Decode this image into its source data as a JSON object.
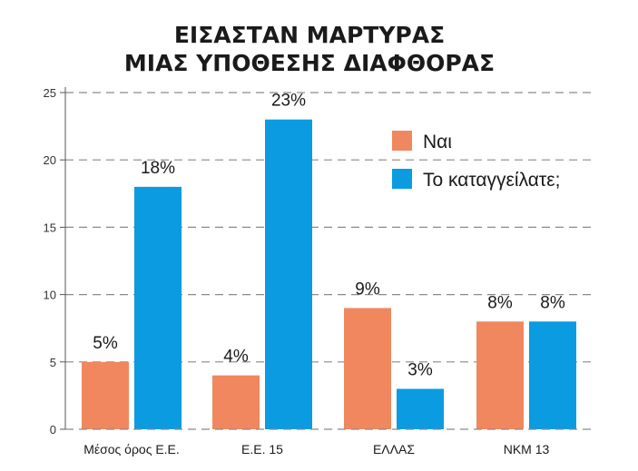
{
  "chart_data": {
    "type": "bar",
    "title": [
      "ΕΙΣΑΣΤΑΝ ΜΑΡΤΥΡΑΣ",
      "ΜΙΑΣ ΥΠΟΘΕΣΗΣ ΔΙΑΦΘΟΡΑΣ"
    ],
    "categories": [
      "Μέσος όρος Ε.Ε.",
      "Ε.Ε. 15",
      "ΕΛΛΑΣ",
      "ΝΚΜ 13"
    ],
    "series": [
      {
        "name": "Ναι",
        "values": [
          5,
          4,
          9,
          8
        ],
        "labels": [
          "5%",
          "4%",
          "9%",
          "8%"
        ],
        "color": "#F0875F"
      },
      {
        "name": "Το καταγγείλατε;",
        "values": [
          18,
          23,
          3,
          8
        ],
        "labels": [
          "18%",
          "23%",
          "3%",
          "8%"
        ],
        "color": "#0A9BE0"
      }
    ],
    "ylim": [
      0,
      25
    ],
    "yticks": [
      0,
      5,
      10,
      15,
      20,
      25
    ],
    "xlabel": "",
    "ylabel": "",
    "grid": true,
    "grid_style": "dashed",
    "legend_position": "top-right"
  }
}
